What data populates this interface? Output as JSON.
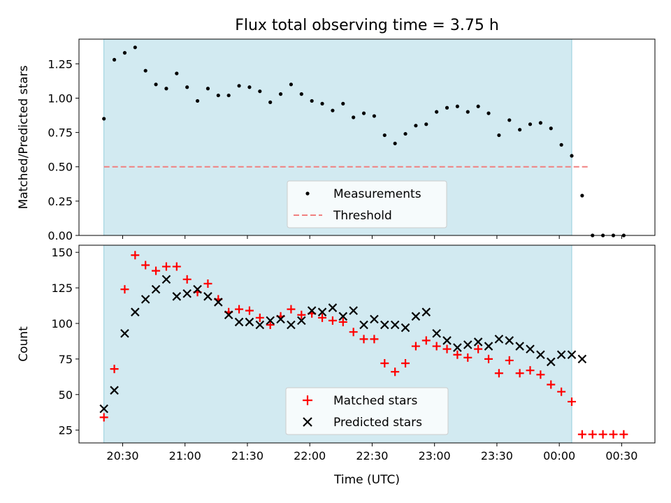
{
  "title": "Flux total observing time = 3.75 h",
  "x_ticks": [
    "20:30",
    "21:00",
    "21:30",
    "22:00",
    "22:30",
    "23:00",
    "23:30",
    "00:00",
    "00:30"
  ],
  "x_tick_minutes": [
    1230,
    1260,
    1290,
    1320,
    1350,
    1380,
    1410,
    1440,
    1470
  ],
  "colors": {
    "observing_band": "#add8e6",
    "measurement_marker": "#000000",
    "threshold_line": "#f08080",
    "matched_marker": "#ff0000",
    "predicted_marker": "#000000"
  },
  "chart_data": [
    {
      "type": "scatter",
      "ylabel": "Matched/Predicted stars",
      "xlabel": "",
      "xlim_minutes": [
        1209,
        1486
      ],
      "ylim": [
        0,
        1.43
      ],
      "y_ticks": [
        "0.00",
        "0.25",
        "0.50",
        "0.75",
        "1.00",
        "1.25"
      ],
      "y_tick_values": [
        0,
        0.25,
        0.5,
        0.75,
        1.0,
        1.25
      ],
      "observing_window_minutes": [
        1221,
        1446
      ],
      "threshold": 0.5,
      "threshold_range_minutes": [
        1221,
        1454
      ],
      "legend_position": "lower-center",
      "legend": [
        "Measurements",
        "Threshold"
      ],
      "series": [
        {
          "name": "Measurements",
          "x_minutes": [
            1221,
            1226,
            1231,
            1236,
            1241,
            1246,
            1251,
            1256,
            1261,
            1266,
            1271,
            1276,
            1281,
            1286,
            1291,
            1296,
            1301,
            1306,
            1311,
            1316,
            1321,
            1326,
            1331,
            1336,
            1341,
            1346,
            1351,
            1356,
            1361,
            1366,
            1371,
            1376,
            1381,
            1386,
            1391,
            1396,
            1401,
            1406,
            1411,
            1416,
            1421,
            1426,
            1431,
            1436,
            1441,
            1446,
            1451,
            1456,
            1461,
            1466,
            1471
          ],
          "values": [
            0.85,
            1.28,
            1.33,
            1.37,
            1.2,
            1.1,
            1.07,
            1.18,
            1.08,
            0.98,
            1.07,
            1.02,
            1.02,
            1.09,
            1.08,
            1.05,
            0.97,
            1.03,
            1.1,
            1.03,
            0.98,
            0.96,
            0.91,
            0.96,
            0.86,
            0.89,
            0.87,
            0.73,
            0.67,
            0.74,
            0.8,
            0.81,
            0.9,
            0.93,
            0.94,
            0.9,
            0.94,
            0.89,
            0.73,
            0.84,
            0.77,
            0.81,
            0.82,
            0.78,
            0.66,
            0.58,
            0.29,
            0.0,
            0.0,
            0.0,
            0.0
          ]
        }
      ]
    },
    {
      "type": "scatter",
      "ylabel": "Count",
      "xlabel": "Time (UTC)",
      "xlim_minutes": [
        1209,
        1486
      ],
      "ylim": [
        16,
        155
      ],
      "y_ticks": [
        "25",
        "50",
        "75",
        "100",
        "125",
        "150"
      ],
      "y_tick_values": [
        25,
        50,
        75,
        100,
        125,
        150
      ],
      "observing_window_minutes": [
        1221,
        1446
      ],
      "legend_position": "lower-center",
      "legend": [
        "Matched stars",
        "Predicted stars"
      ],
      "series": [
        {
          "name": "Matched stars",
          "x_minutes": [
            1221,
            1226,
            1231,
            1236,
            1241,
            1246,
            1251,
            1256,
            1261,
            1266,
            1271,
            1276,
            1281,
            1286,
            1291,
            1296,
            1301,
            1306,
            1311,
            1316,
            1321,
            1326,
            1331,
            1336,
            1341,
            1346,
            1351,
            1356,
            1361,
            1366,
            1371,
            1376,
            1381,
            1386,
            1391,
            1396,
            1401,
            1406,
            1411,
            1416,
            1421,
            1426,
            1431,
            1436,
            1441,
            1446,
            1451,
            1456,
            1461,
            1466,
            1471
          ],
          "values": [
            34,
            68,
            124,
            148,
            141,
            137,
            140,
            140,
            131,
            122,
            128,
            117,
            108,
            110,
            109,
            104,
            99,
            105,
            110,
            106,
            107,
            104,
            102,
            101,
            94,
            89,
            89,
            72,
            66,
            72,
            84,
            88,
            84,
            82,
            78,
            76,
            82,
            75,
            65,
            74,
            65,
            67,
            64,
            57,
            52,
            45,
            22,
            22,
            22,
            22,
            22
          ]
        },
        {
          "name": "Predicted stars",
          "x_minutes": [
            1221,
            1226,
            1231,
            1236,
            1241,
            1246,
            1251,
            1256,
            1261,
            1266,
            1271,
            1276,
            1281,
            1286,
            1291,
            1296,
            1301,
            1306,
            1311,
            1316,
            1321,
            1326,
            1331,
            1336,
            1341,
            1346,
            1351,
            1356,
            1361,
            1366,
            1371,
            1376,
            1381,
            1386,
            1391,
            1396,
            1401,
            1406,
            1411,
            1416,
            1421,
            1426,
            1431,
            1436,
            1441,
            1446,
            1451
          ],
          "values": [
            40,
            53,
            93,
            108,
            117,
            124,
            131,
            119,
            121,
            124,
            119,
            115,
            106,
            101,
            101,
            99,
            102,
            103,
            99,
            102,
            109,
            108,
            111,
            105,
            109,
            99,
            103,
            99,
            99,
            97,
            105,
            108,
            93,
            88,
            83,
            85,
            87,
            84,
            89,
            88,
            84,
            82,
            78,
            73,
            78,
            78,
            75
          ]
        }
      ]
    }
  ]
}
